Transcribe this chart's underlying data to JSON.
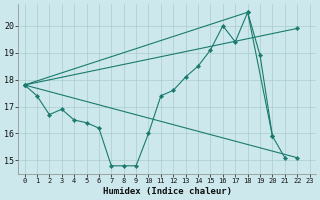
{
  "background_color": "#cce8ec",
  "grid_color": "#aacccc",
  "line_color": "#1a7a6e",
  "xlabel": "Humidex (Indice chaleur)",
  "xlim": [
    -0.5,
    23.5
  ],
  "ylim": [
    14.5,
    20.8
  ],
  "yticks": [
    15,
    16,
    17,
    18,
    19,
    20
  ],
  "xticks": [
    0,
    1,
    2,
    3,
    4,
    5,
    6,
    7,
    8,
    9,
    10,
    11,
    12,
    13,
    14,
    15,
    16,
    17,
    18,
    19,
    20,
    21,
    22,
    23
  ],
  "series": [
    {
      "x": [
        0,
        1,
        2,
        3,
        4,
        5,
        6,
        7,
        8,
        9,
        10,
        11,
        12,
        13,
        14,
        15,
        16,
        17,
        18,
        19,
        20,
        21
      ],
      "y": [
        17.8,
        17.4,
        16.7,
        16.9,
        16.5,
        16.4,
        16.2,
        14.8,
        14.8,
        14.8,
        16.0,
        17.4,
        17.6,
        18.1,
        18.5,
        19.1,
        20.0,
        19.4,
        20.5,
        18.9,
        15.9,
        15.1
      ]
    },
    {
      "x": [
        0,
        22
      ],
      "y": [
        17.8,
        15.1
      ]
    },
    {
      "x": [
        0,
        18,
        20
      ],
      "y": [
        17.8,
        20.5,
        15.9
      ]
    },
    {
      "x": [
        0,
        22
      ],
      "y": [
        17.8,
        19.9
      ]
    }
  ]
}
